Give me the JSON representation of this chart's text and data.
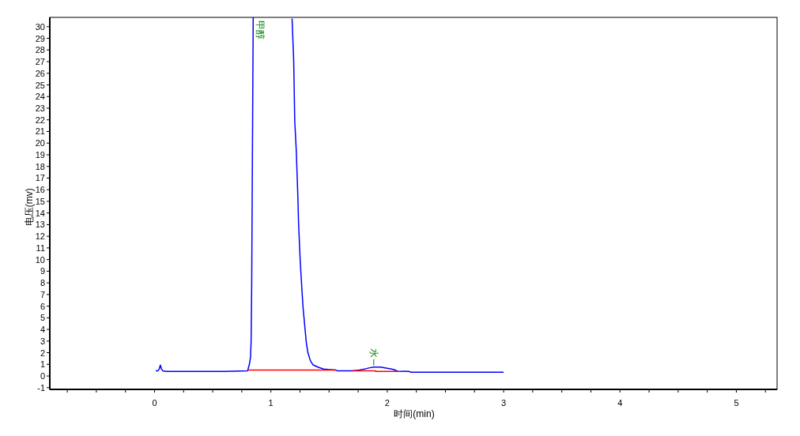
{
  "chart_data": {
    "type": "line",
    "xlabel": "时间(min)",
    "ylabel": "电压(mv)",
    "xlim": [
      -0.9,
      5.35
    ],
    "ylim": [
      -1.15,
      30.8
    ],
    "xticks": [
      {
        "value": -0.75,
        "label": null
      },
      {
        "value": -0.5,
        "label": null
      },
      {
        "value": -0.25,
        "label": null
      },
      0,
      {
        "value": 0.25,
        "label": null
      },
      {
        "value": 0.5,
        "label": null
      },
      {
        "value": 0.75,
        "label": null
      },
      1,
      {
        "value": 1.25,
        "label": null
      },
      {
        "value": 1.5,
        "label": null
      },
      {
        "value": 1.75,
        "label": null
      },
      2,
      {
        "value": 2.25,
        "label": null
      },
      {
        "value": 2.5,
        "label": null
      },
      {
        "value": 2.75,
        "label": null
      },
      3,
      {
        "value": 3.25,
        "label": null
      },
      {
        "value": 3.5,
        "label": null
      },
      {
        "value": 3.75,
        "label": null
      },
      4,
      {
        "value": 4.25,
        "label": null
      },
      {
        "value": 4.5,
        "label": null
      },
      {
        "value": 4.75,
        "label": null
      },
      5,
      {
        "value": 5.25,
        "label": null
      }
    ],
    "yticks": [
      -1,
      0,
      1,
      2,
      3,
      4,
      5,
      6,
      7,
      8,
      9,
      10,
      11,
      12,
      13,
      14,
      15,
      16,
      17,
      18,
      19,
      20,
      21,
      22,
      23,
      24,
      25,
      26,
      27,
      28,
      29,
      30
    ],
    "grid": false,
    "marker": "none",
    "line_style": "solid",
    "series": [
      {
        "color": "#0000ff",
        "x": [
          0.01,
          0.03,
          0.04,
          0.05,
          0.06,
          0.07,
          0.1,
          0.3,
          0.6,
          0.8,
          0.815,
          0.825,
          0.83,
          0.835,
          0.84,
          0.848
        ],
        "values": [
          0.45,
          0.45,
          0.6,
          0.93,
          0.6,
          0.45,
          0.39,
          0.39,
          0.39,
          0.45,
          1.0,
          1.6,
          3.0,
          7.7,
          16.7,
          30.8
        ]
      },
      {
        "color": "#0000ff",
        "x": [
          1.182,
          1.196,
          1.205,
          1.218,
          1.225,
          1.232,
          1.238,
          1.245,
          1.252,
          1.259,
          1.266,
          1.277,
          1.291,
          1.304,
          1.318,
          1.34,
          1.363,
          1.408,
          1.454,
          1.494,
          1.556,
          1.57,
          1.7,
          1.76,
          1.805,
          1.84,
          1.884,
          1.94,
          2.0,
          2.054,
          2.09,
          2.19,
          2.2,
          3.0
        ],
        "values": [
          30.7,
          27.1,
          21.9,
          19.4,
          17.4,
          15.3,
          13.1,
          11.5,
          9.9,
          8.7,
          7.5,
          5.8,
          4.3,
          2.9,
          2.0,
          1.3,
          0.95,
          0.75,
          0.6,
          0.56,
          0.52,
          0.45,
          0.45,
          0.52,
          0.59,
          0.69,
          0.76,
          0.76,
          0.66,
          0.56,
          0.41,
          0.39,
          0.33,
          0.33
        ]
      },
      {
        "color": "#ff0000",
        "x": [
          0.8,
          1.56
        ],
        "values": [
          0.52,
          0.52
        ]
      },
      {
        "color": "#ff0000",
        "x": [
          1.7,
          1.9,
          1.9,
          2.09
        ],
        "values": [
          0.45,
          0.45,
          0.39,
          0.39
        ]
      }
    ],
    "annotations": [
      {
        "text": "甲醇",
        "x": 0.848,
        "y": 30.8
      },
      {
        "text": "水",
        "x": 1.884,
        "y": 0.76
      }
    ]
  }
}
